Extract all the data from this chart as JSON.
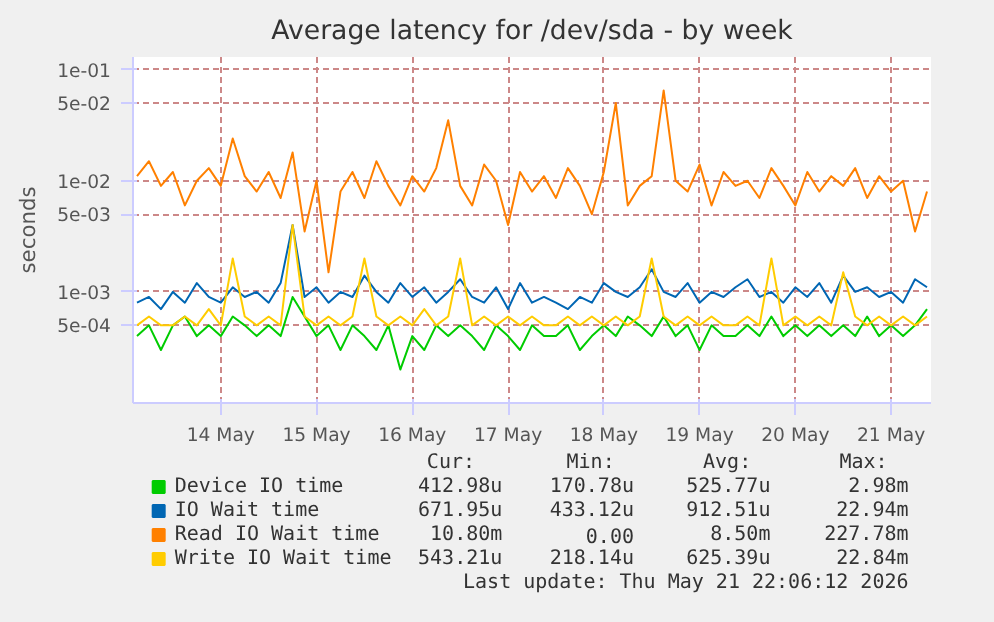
{
  "chart_data": {
    "type": "line",
    "title": "Average latency for /dev/sda - by week",
    "ylabel": "seconds",
    "log": true,
    "grid": true,
    "legend": "bottom",
    "ylim": [
      0.0001,
      0.13
    ],
    "yticks": [
      {
        "value": 0.1,
        "label": "1e-01"
      },
      {
        "value": 0.05,
        "label": "5e-02"
      },
      {
        "value": 0.01,
        "label": "1e-02"
      },
      {
        "value": 0.005,
        "label": "5e-03"
      },
      {
        "value": 0.001,
        "label": "1e-03"
      },
      {
        "value": 0.0005,
        "label": "5e-04"
      }
    ],
    "xlim": [
      "2026-05-13T14:00",
      "2026-05-21T22:00"
    ],
    "xticks": [
      {
        "value": "2026-05-14T12:00",
        "label": "14 May"
      },
      {
        "value": "2026-05-15T12:00",
        "label": "15 May"
      },
      {
        "value": "2026-05-16T12:00",
        "label": "16 May"
      },
      {
        "value": "2026-05-17T12:00",
        "label": "17 May"
      },
      {
        "value": "2026-05-18T12:00",
        "label": "18 May"
      },
      {
        "value": "2026-05-19T12:00",
        "label": "19 May"
      },
      {
        "value": "2026-05-20T12:00",
        "label": "20 May"
      },
      {
        "value": "2026-05-21T12:00",
        "label": "21 May"
      }
    ],
    "x": [
      "2026-05-13T15:00",
      "2026-05-13T18:00",
      "2026-05-13T21:00",
      "2026-05-14T00:00",
      "2026-05-14T03:00",
      "2026-05-14T06:00",
      "2026-05-14T09:00",
      "2026-05-14T12:00",
      "2026-05-14T15:00",
      "2026-05-14T18:00",
      "2026-05-14T21:00",
      "2026-05-15T00:00",
      "2026-05-15T03:00",
      "2026-05-15T06:00",
      "2026-05-15T09:00",
      "2026-05-15T12:00",
      "2026-05-15T15:00",
      "2026-05-15T18:00",
      "2026-05-15T21:00",
      "2026-05-16T00:00",
      "2026-05-16T03:00",
      "2026-05-16T06:00",
      "2026-05-16T09:00",
      "2026-05-16T12:00",
      "2026-05-16T15:00",
      "2026-05-16T18:00",
      "2026-05-16T21:00",
      "2026-05-17T00:00",
      "2026-05-17T03:00",
      "2026-05-17T06:00",
      "2026-05-17T09:00",
      "2026-05-17T12:00",
      "2026-05-17T15:00",
      "2026-05-17T18:00",
      "2026-05-17T21:00",
      "2026-05-18T00:00",
      "2026-05-18T03:00",
      "2026-05-18T06:00",
      "2026-05-18T09:00",
      "2026-05-18T12:00",
      "2026-05-18T15:00",
      "2026-05-18T18:00",
      "2026-05-18T21:00",
      "2026-05-19T00:00",
      "2026-05-19T03:00",
      "2026-05-19T06:00",
      "2026-05-19T09:00",
      "2026-05-19T12:00",
      "2026-05-19T15:00",
      "2026-05-19T18:00",
      "2026-05-19T21:00",
      "2026-05-20T00:00",
      "2026-05-20T03:00",
      "2026-05-20T06:00",
      "2026-05-20T09:00",
      "2026-05-20T12:00",
      "2026-05-20T15:00",
      "2026-05-20T18:00",
      "2026-05-20T21:00",
      "2026-05-21T00:00",
      "2026-05-21T03:00",
      "2026-05-21T06:00",
      "2026-05-21T09:00",
      "2026-05-21T12:00",
      "2026-05-21T15:00",
      "2026-05-21T18:00",
      "2026-05-21T21:00"
    ],
    "series": [
      {
        "name": "Device IO time",
        "color": "#00cc00",
        "values": [
          0.0004,
          0.0005,
          0.0003,
          0.0005,
          0.0006,
          0.0004,
          0.0005,
          0.0004,
          0.0006,
          0.0005,
          0.0004,
          0.0005,
          0.0004,
          0.0009,
          0.0006,
          0.0004,
          0.0005,
          0.0003,
          0.0005,
          0.0004,
          0.0003,
          0.0005,
          0.0002,
          0.0004,
          0.0003,
          0.0005,
          0.0004,
          0.0005,
          0.0004,
          0.0003,
          0.0005,
          0.0004,
          0.0003,
          0.0005,
          0.0004,
          0.0004,
          0.0005,
          0.0003,
          0.0004,
          0.0005,
          0.0004,
          0.0006,
          0.0005,
          0.0004,
          0.0006,
          0.0004,
          0.0005,
          0.0003,
          0.0005,
          0.0004,
          0.0004,
          0.0005,
          0.0004,
          0.0006,
          0.0004,
          0.0005,
          0.0004,
          0.0005,
          0.0004,
          0.0005,
          0.0004,
          0.0006,
          0.0004,
          0.0005,
          0.0004,
          0.0005,
          0.0007
        ]
      },
      {
        "name": "IO Wait time",
        "color": "#0066b3",
        "values": [
          0.0008,
          0.0009,
          0.0007,
          0.001,
          0.0008,
          0.0012,
          0.0009,
          0.0008,
          0.0011,
          0.0009,
          0.001,
          0.0008,
          0.0012,
          0.004,
          0.0009,
          0.0011,
          0.0008,
          0.001,
          0.0009,
          0.0014,
          0.001,
          0.0008,
          0.0012,
          0.0009,
          0.0011,
          0.0008,
          0.001,
          0.0013,
          0.0009,
          0.0008,
          0.0011,
          0.0007,
          0.0012,
          0.0008,
          0.0009,
          0.0008,
          0.0007,
          0.0009,
          0.0008,
          0.0012,
          0.001,
          0.0009,
          0.0011,
          0.0016,
          0.001,
          0.0009,
          0.0012,
          0.0008,
          0.001,
          0.0009,
          0.0011,
          0.0013,
          0.0009,
          0.001,
          0.0008,
          0.0011,
          0.0009,
          0.0012,
          0.0008,
          0.0014,
          0.001,
          0.0011,
          0.0009,
          0.001,
          0.0008,
          0.0013,
          0.0011
        ]
      },
      {
        "name": "Read IO Wait time",
        "color": "#ff8000",
        "values": [
          0.011,
          0.015,
          0.009,
          0.012,
          0.006,
          0.01,
          0.013,
          0.009,
          0.024,
          0.011,
          0.008,
          0.012,
          0.007,
          0.018,
          0.0035,
          0.01,
          0.0015,
          0.008,
          0.012,
          0.007,
          0.015,
          0.009,
          0.006,
          0.011,
          0.008,
          0.013,
          0.035,
          0.009,
          0.006,
          0.014,
          0.01,
          0.004,
          0.012,
          0.008,
          0.011,
          0.007,
          0.013,
          0.009,
          0.005,
          0.012,
          0.05,
          0.006,
          0.009,
          0.011,
          0.065,
          0.01,
          0.008,
          0.014,
          0.006,
          0.012,
          0.009,
          0.01,
          0.007,
          0.013,
          0.009,
          0.006,
          0.012,
          0.008,
          0.011,
          0.009,
          0.013,
          0.007,
          0.011,
          0.008,
          0.01,
          0.0035,
          0.008
        ]
      },
      {
        "name": "Write IO Wait time",
        "color": "#ffcc00",
        "values": [
          0.0005,
          0.0006,
          0.0005,
          0.0005,
          0.0006,
          0.0005,
          0.0007,
          0.0005,
          0.002,
          0.0006,
          0.0005,
          0.0006,
          0.0005,
          0.004,
          0.0006,
          0.0005,
          0.0006,
          0.0005,
          0.0006,
          0.002,
          0.0006,
          0.0005,
          0.0006,
          0.0005,
          0.0007,
          0.0005,
          0.0006,
          0.002,
          0.0005,
          0.0006,
          0.0005,
          0.0006,
          0.0005,
          0.0006,
          0.0005,
          0.0005,
          0.0006,
          0.0005,
          0.0006,
          0.0005,
          0.0006,
          0.0005,
          0.0006,
          0.002,
          0.0006,
          0.0005,
          0.0006,
          0.0005,
          0.0006,
          0.0005,
          0.0005,
          0.0006,
          0.0005,
          0.002,
          0.0005,
          0.0006,
          0.0005,
          0.0006,
          0.0005,
          0.0015,
          0.0006,
          0.0005,
          0.0006,
          0.0005,
          0.0006,
          0.0005,
          0.0006
        ]
      }
    ],
    "annotations": [
      "Cur:",
      "Min:",
      "Avg:",
      "Max:",
      "412.98u",
      "170.78u",
      "525.77u",
      "2.98m",
      "671.95u",
      "433.12u",
      "912.51u",
      "22.94m",
      "10.80m",
      "0.00",
      "8.50m",
      "227.78m",
      "543.21u",
      "218.14u",
      "625.39u",
      "22.84m",
      "Last update: Thu May 21 22:06:12 2026"
    ]
  }
}
